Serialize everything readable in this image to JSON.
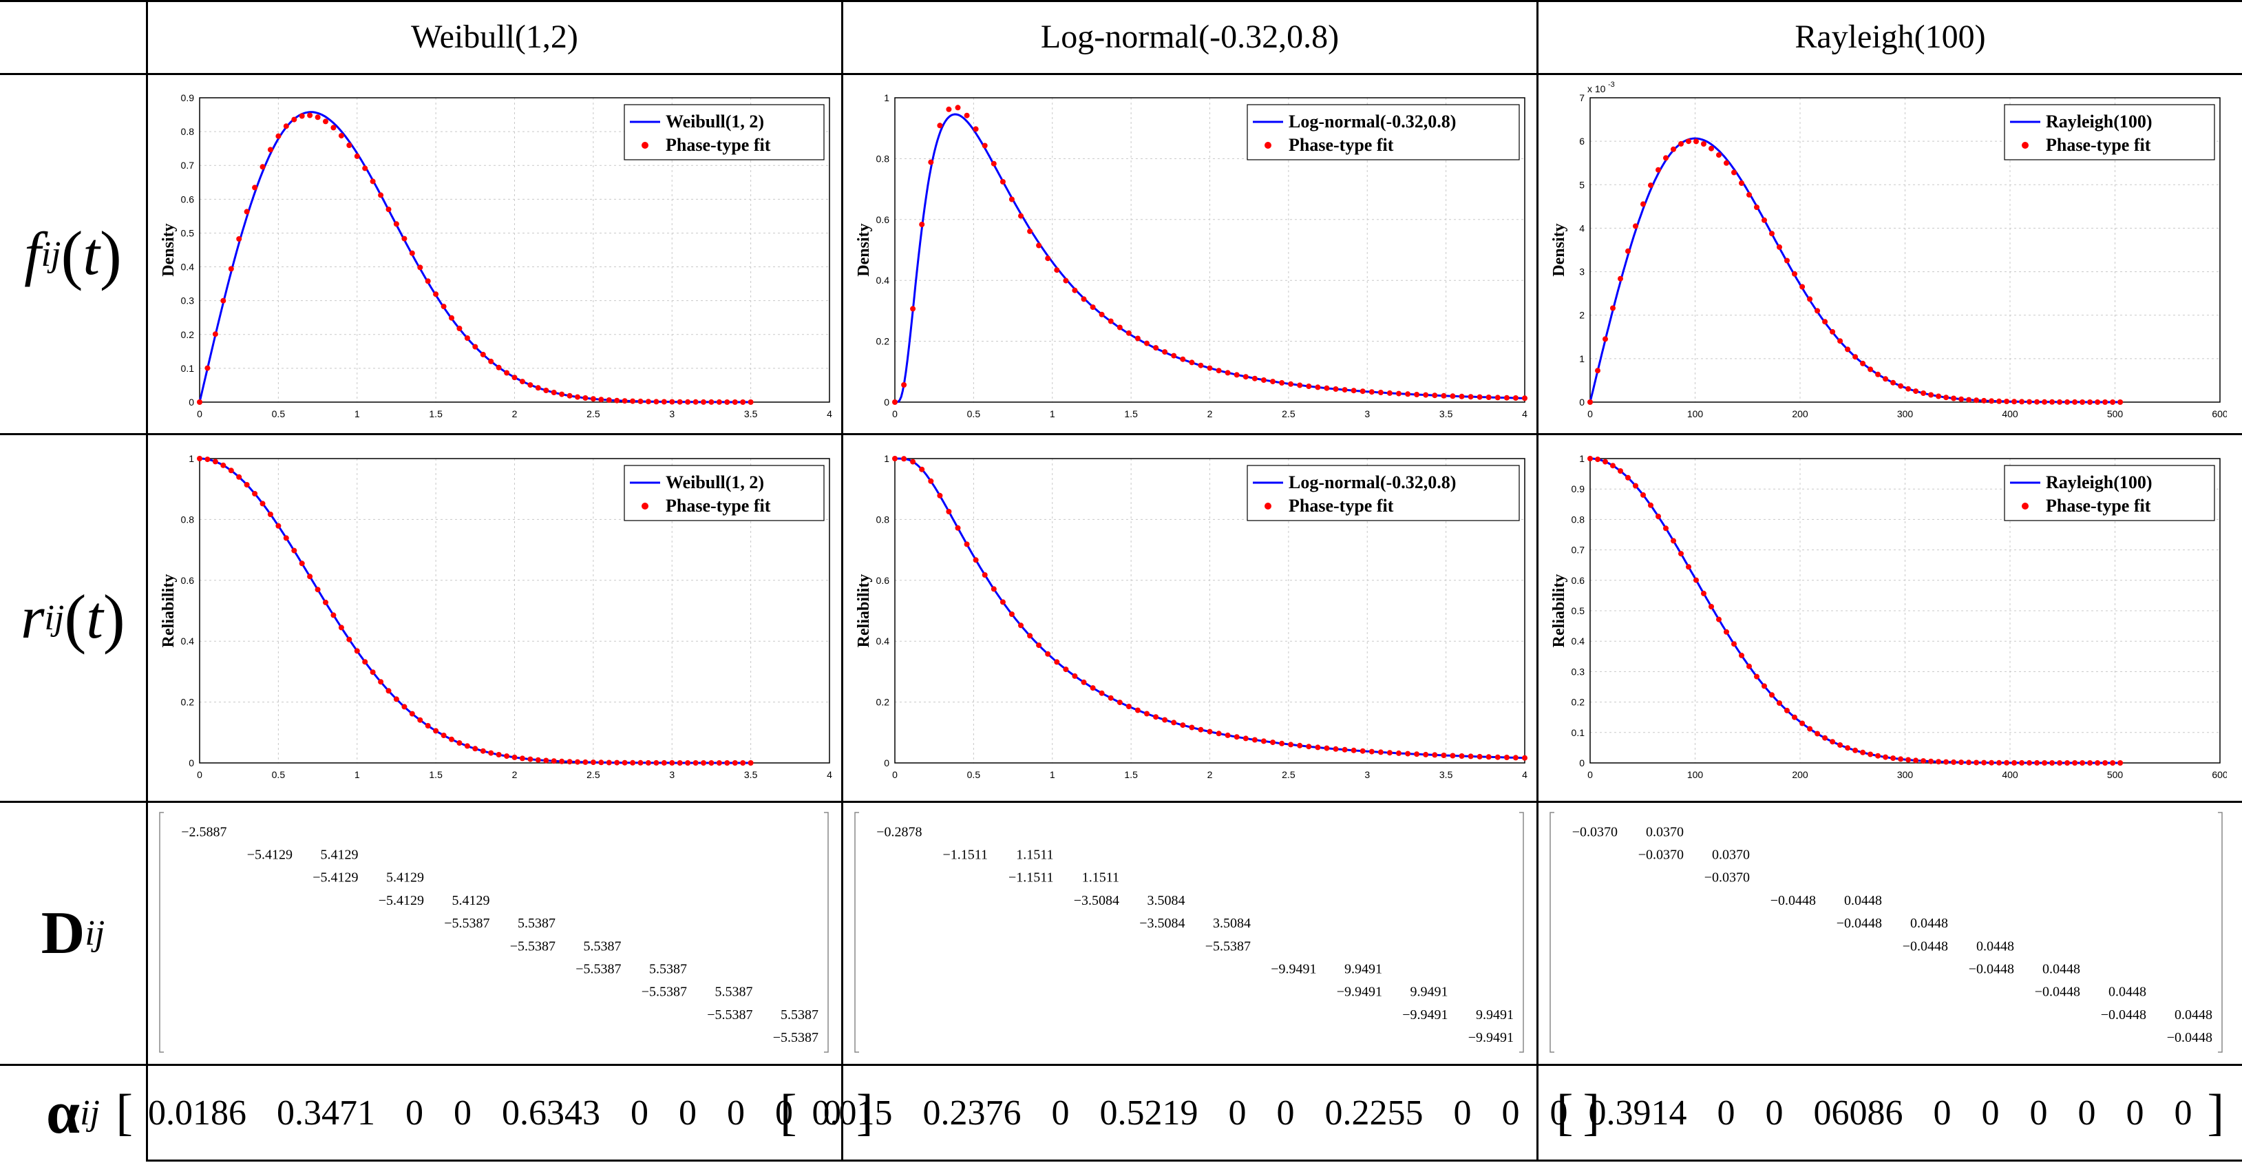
{
  "columns": [
    {
      "header": "Weibull(1,2)",
      "legend_model": "Weibull(1, 2)",
      "legend_fit": "Phase-type fit",
      "xmax": 4,
      "xticks": [
        "0",
        "0.5",
        "1",
        "1.5",
        "2",
        "2.5",
        "3",
        "3.5",
        "4"
      ],
      "density_yticks": [
        "0",
        "0.1",
        "0.2",
        "0.3",
        "0.4",
        "0.5",
        "0.6",
        "0.7",
        "0.8",
        "0.9"
      ],
      "density_ymax": 0.9,
      "density_exponent": "",
      "reliability_yticks": [
        "0",
        "0.2",
        "0.4",
        "0.6",
        "0.8",
        "1"
      ],
      "matrix": [
        [
          "-2.5887"
        ],
        [
          "-5.4129",
          "5.4129"
        ],
        [
          "-5.4129",
          "5.4129"
        ],
        [
          "-5.4129",
          "5.4129"
        ],
        [
          "-5.5387",
          "5.5387"
        ],
        [
          "-5.5387",
          "5.5387"
        ],
        [
          "-5.5387",
          "5.5387"
        ],
        [
          "-5.5387",
          "5.5387"
        ],
        [
          "-5.5387",
          "5.5387"
        ],
        [
          "-5.5387"
        ]
      ],
      "alpha": [
        "0.0186",
        "0.3471",
        "0",
        "0",
        "0.6343",
        "0",
        "0",
        "0",
        "0",
        "0"
      ]
    },
    {
      "header": "Log-normal(-0.32,0.8)",
      "legend_model": "Log-normal(-0.32,0.8)",
      "legend_fit": "Phase-type fit",
      "xmax": 4,
      "xticks": [
        "0",
        "0.5",
        "1",
        "1.5",
        "2",
        "2.5",
        "3",
        "3.5",
        "4"
      ],
      "density_yticks": [
        "0",
        "0.2",
        "0.4",
        "0.6",
        "0.8",
        "1"
      ],
      "density_ymax": 1,
      "density_exponent": "",
      "reliability_yticks": [
        "0",
        "0.2",
        "0.4",
        "0.6",
        "0.8",
        "1"
      ],
      "matrix": [
        [
          "-0.2878"
        ],
        [
          "-1.1511",
          "1.1511"
        ],
        [
          "-1.1511",
          "1.1511"
        ],
        [
          "-3.5084",
          "3.5084"
        ],
        [
          "-3.5084",
          "3.5084"
        ],
        [
          "-5.5387"
        ],
        [
          "-9.9491",
          "9.9491"
        ],
        [
          "-9.9491",
          "9.9491"
        ],
        [
          "-9.9491",
          "9.9491"
        ],
        [
          "-9.9491"
        ]
      ],
      "alpha": [
        "0.015",
        "0.2376",
        "0",
        "0.5219",
        "0",
        "0",
        "0.2255",
        "0",
        "0",
        "0"
      ]
    },
    {
      "header": "Rayleigh(100)",
      "legend_model": "Rayleigh(100)",
      "legend_fit": "Phase-type fit",
      "xmax": 600,
      "xticks": [
        "0",
        "100",
        "200",
        "300",
        "400",
        "500",
        "600"
      ],
      "density_yticks": [
        "0",
        "1",
        "2",
        "3",
        "4",
        "5",
        "6",
        "7"
      ],
      "density_ymax": 7,
      "density_exponent": "x 10",
      "density_exponent_power": "-3",
      "reliability_yticks": [
        "0",
        "0.1",
        "0.2",
        "0.3",
        "0.4",
        "0.5",
        "0.6",
        "0.7",
        "0.8",
        "0.9",
        "1"
      ],
      "matrix": [
        [
          "-0.0370",
          "0.0370"
        ],
        [
          "-0.0370",
          "0.0370"
        ],
        [
          "-0.0370"
        ],
        [
          "-0.0448",
          "0.0448"
        ],
        [
          "-0.0448",
          "0.0448"
        ],
        [
          "-0.0448",
          "0.0448"
        ],
        [
          "-0.0448",
          "0.0448"
        ],
        [
          "-0.0448",
          "0.0448"
        ],
        [
          "-0.0448",
          "0.0448"
        ],
        [
          "-0.0448"
        ]
      ],
      "alpha": [
        "0.3914",
        "0",
        "0",
        "06086",
        "0",
        "0",
        "0",
        "0",
        "0",
        "0"
      ]
    }
  ],
  "rows": {
    "density": {
      "symbol": "f",
      "sub": "ij",
      "arg": "t",
      "ylabel": "Density"
    },
    "reliability": {
      "symbol": "r",
      "sub": "ij",
      "arg": "t",
      "ylabel": "Reliability"
    },
    "matrix": {
      "symbol": "D",
      "sub": "ij"
    },
    "alpha": {
      "symbol": "α",
      "sub": "ij"
    }
  },
  "chart_data": [
    {
      "type": "line",
      "title": "Weibull(1,2) density",
      "xlabel": "",
      "ylabel": "Density",
      "xlim": [
        0,
        4
      ],
      "ylim": [
        0,
        0.9
      ],
      "series": [
        {
          "name": "Weibull(1, 2)",
          "dist": "weibull",
          "scale": 1,
          "shape": 2,
          "kind": "pdf",
          "xmax": 3.5
        },
        {
          "name": "Phase-type fit",
          "style": "dots",
          "kind": "pdf",
          "xmax": 3.5
        }
      ]
    },
    {
      "type": "line",
      "title": "Log-normal(-0.32,0.8) density",
      "xlabel": "",
      "ylabel": "Density",
      "xlim": [
        0,
        4
      ],
      "ylim": [
        0,
        1
      ],
      "series": [
        {
          "name": "Log-normal(-0.32,0.8)",
          "dist": "lognormal",
          "mu": -0.32,
          "sigma": 0.8,
          "kind": "pdf",
          "xmax": 4
        },
        {
          "name": "Phase-type fit",
          "style": "dots",
          "kind": "pdf",
          "xmax": 4
        }
      ]
    },
    {
      "type": "line",
      "title": "Rayleigh(100) density",
      "xlabel": "",
      "ylabel": "Density",
      "xlim": [
        0,
        600
      ],
      "ylim": [
        0,
        0.007
      ],
      "series": [
        {
          "name": "Rayleigh(100)",
          "dist": "rayleigh",
          "sigma": 100,
          "kind": "pdf",
          "xmax": 505
        },
        {
          "name": "Phase-type fit",
          "style": "dots",
          "kind": "pdf",
          "xmax": 505
        }
      ]
    },
    {
      "type": "line",
      "title": "Weibull(1,2) reliability",
      "xlabel": "",
      "ylabel": "Reliability",
      "xlim": [
        0,
        4
      ],
      "ylim": [
        0,
        1
      ],
      "series": [
        {
          "name": "Weibull(1, 2)",
          "dist": "weibull",
          "scale": 1,
          "shape": 2,
          "kind": "rel",
          "xmax": 3.5
        },
        {
          "name": "Phase-type fit",
          "style": "dots",
          "kind": "rel",
          "xmax": 3.5
        }
      ]
    },
    {
      "type": "line",
      "title": "Log-normal(-0.32,0.8) reliability",
      "xlabel": "",
      "ylabel": "Reliability",
      "xlim": [
        0,
        4
      ],
      "ylim": [
        0,
        1
      ],
      "series": [
        {
          "name": "Log-normal(-0.32,0.8)",
          "dist": "lognormal",
          "mu": -0.32,
          "sigma": 0.8,
          "kind": "rel",
          "xmax": 4
        },
        {
          "name": "Phase-type fit",
          "style": "dots",
          "kind": "rel",
          "xmax": 4
        }
      ]
    },
    {
      "type": "line",
      "title": "Rayleigh(100) reliability",
      "xlabel": "",
      "ylabel": "Reliability",
      "xlim": [
        0,
        600
      ],
      "ylim": [
        0,
        1
      ],
      "series": [
        {
          "name": "Rayleigh(100)",
          "dist": "rayleigh",
          "sigma": 100,
          "kind": "rel",
          "xmax": 505
        },
        {
          "name": "Phase-type fit",
          "style": "dots",
          "kind": "rel",
          "xmax": 505
        }
      ]
    }
  ],
  "colors": {
    "model_line": "#0000ff",
    "fit_dots": "#ff0000",
    "grid": "#c8c8c8"
  }
}
